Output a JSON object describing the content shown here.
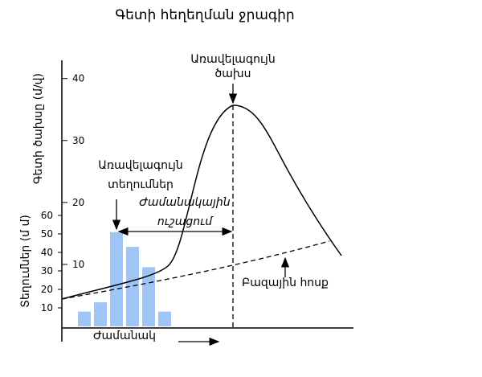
{
  "chart_data": {
    "type": "hydrograph",
    "title": "Գետի հեղեղման ջրագիր",
    "discharge_axis": {
      "label": "Գետի ծախսը (մ/վ)",
      "ylim": [
        0,
        41
      ],
      "yticks": [
        10,
        20,
        30,
        40
      ]
    },
    "rain_axis": {
      "label": "Տեղումներ (մ մ)",
      "ylim": [
        0,
        60
      ],
      "yticks": [
        10,
        20,
        30,
        40,
        50,
        60
      ]
    },
    "x_label": "Ժամանակ",
    "values": [
      8,
      13,
      51,
      43,
      32,
      8
    ],
    "color": "#9ec5f5",
    "annotations": {
      "peak_discharge": [
        "Առավելագույն",
        "ծախս"
      ],
      "peak_rain": [
        "Առավելագույն",
        "տեղումներ"
      ],
      "lag_time": [
        "Ժամանակային",
        "ուշացում"
      ],
      "base_flow": "Բազային հոսք"
    }
  }
}
